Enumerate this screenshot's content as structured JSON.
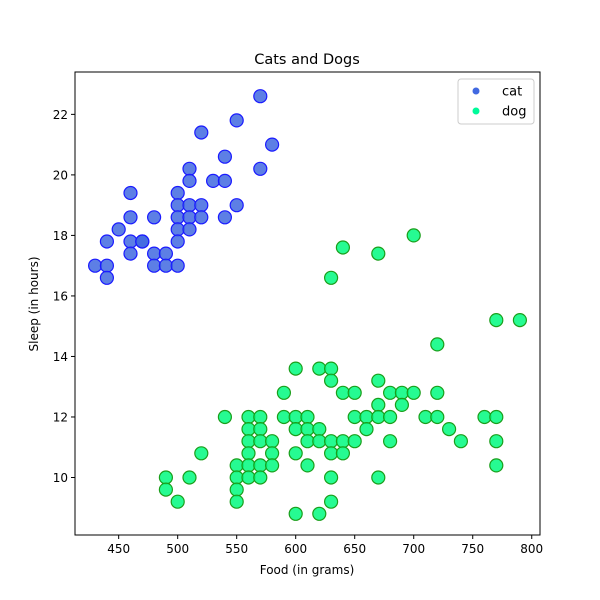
{
  "chart_data": {
    "type": "scatter",
    "title": "Cats and Dogs",
    "xlabel": "Food (in grams)",
    "ylabel": "Sleep (in hours)",
    "xlim": [
      413,
      807
    ],
    "ylim": [
      8.1,
      23.4
    ],
    "xticks": [
      450,
      500,
      550,
      600,
      650,
      700,
      750,
      800
    ],
    "yticks": [
      10,
      12,
      14,
      16,
      18,
      20,
      22
    ],
    "grid": false,
    "legend_position": "top-right",
    "series": [
      {
        "name": "cat",
        "color": "#4169E1",
        "marker_fill": "rgba(65,105,225,0.85)",
        "marker_edge": "#1a1aff",
        "points": [
          [
            430,
            17.0
          ],
          [
            440,
            17.0
          ],
          [
            440,
            16.6
          ],
          [
            440,
            17.8
          ],
          [
            450,
            18.2
          ],
          [
            460,
            19.4
          ],
          [
            460,
            18.6
          ],
          [
            460,
            17.8
          ],
          [
            460,
            17.4
          ],
          [
            470,
            17.8
          ],
          [
            470,
            17.8
          ],
          [
            480,
            18.6
          ],
          [
            480,
            17.4
          ],
          [
            480,
            17.0
          ],
          [
            490,
            17.4
          ],
          [
            490,
            17.0
          ],
          [
            500,
            19.4
          ],
          [
            500,
            19.0
          ],
          [
            500,
            18.6
          ],
          [
            500,
            18.2
          ],
          [
            500,
            17.8
          ],
          [
            500,
            17.0
          ],
          [
            510,
            20.2
          ],
          [
            510,
            19.8
          ],
          [
            510,
            19.0
          ],
          [
            510,
            18.6
          ],
          [
            510,
            18.2
          ],
          [
            520,
            21.4
          ],
          [
            520,
            19.0
          ],
          [
            520,
            18.6
          ],
          [
            530,
            19.8
          ],
          [
            540,
            20.6
          ],
          [
            540,
            19.8
          ],
          [
            540,
            18.6
          ],
          [
            550,
            21.8
          ],
          [
            550,
            19.0
          ],
          [
            570,
            22.6
          ],
          [
            570,
            20.2
          ],
          [
            580,
            21.0
          ]
        ]
      },
      {
        "name": "dog",
        "color": "#00FA9A",
        "marker_fill": "rgba(0,250,127,0.85)",
        "marker_edge": "#1a9e1a",
        "points": [
          [
            490,
            10.0
          ],
          [
            490,
            9.6
          ],
          [
            500,
            9.2
          ],
          [
            510,
            10.0
          ],
          [
            520,
            10.8
          ],
          [
            540,
            12.0
          ],
          [
            550,
            10.4
          ],
          [
            550,
            10.0
          ],
          [
            550,
            9.6
          ],
          [
            550,
            9.2
          ],
          [
            560,
            12.0
          ],
          [
            560,
            11.6
          ],
          [
            560,
            11.2
          ],
          [
            560,
            10.8
          ],
          [
            560,
            10.4
          ],
          [
            560,
            10.0
          ],
          [
            570,
            12.0
          ],
          [
            570,
            11.6
          ],
          [
            570,
            11.2
          ],
          [
            570,
            10.4
          ],
          [
            570,
            10.0
          ],
          [
            580,
            11.2
          ],
          [
            580,
            10.8
          ],
          [
            580,
            10.4
          ],
          [
            590,
            12.8
          ],
          [
            590,
            12.0
          ],
          [
            600,
            13.6
          ],
          [
            600,
            12.0
          ],
          [
            600,
            11.6
          ],
          [
            600,
            10.8
          ],
          [
            600,
            8.8
          ],
          [
            610,
            12.0
          ],
          [
            610,
            11.6
          ],
          [
            610,
            11.2
          ],
          [
            610,
            10.4
          ],
          [
            620,
            13.6
          ],
          [
            620,
            11.6
          ],
          [
            620,
            11.2
          ],
          [
            620,
            8.8
          ],
          [
            630,
            16.6
          ],
          [
            630,
            13.6
          ],
          [
            630,
            13.2
          ],
          [
            630,
            11.2
          ],
          [
            630,
            10.8
          ],
          [
            630,
            10.0
          ],
          [
            630,
            9.2
          ],
          [
            640,
            17.6
          ],
          [
            640,
            12.8
          ],
          [
            640,
            11.2
          ],
          [
            640,
            10.8
          ],
          [
            650,
            12.8
          ],
          [
            650,
            12.0
          ],
          [
            650,
            11.2
          ],
          [
            660,
            12.0
          ],
          [
            660,
            11.6
          ],
          [
            670,
            17.4
          ],
          [
            670,
            13.2
          ],
          [
            670,
            12.4
          ],
          [
            670,
            12.0
          ],
          [
            670,
            10.0
          ],
          [
            680,
            12.8
          ],
          [
            680,
            12.0
          ],
          [
            680,
            11.2
          ],
          [
            690,
            12.8
          ],
          [
            690,
            12.4
          ],
          [
            700,
            18.0
          ],
          [
            700,
            12.8
          ],
          [
            710,
            12.0
          ],
          [
            720,
            14.4
          ],
          [
            720,
            12.8
          ],
          [
            720,
            12.0
          ],
          [
            730,
            11.6
          ],
          [
            740,
            11.2
          ],
          [
            760,
            12.0
          ],
          [
            770,
            15.2
          ],
          [
            770,
            12.0
          ],
          [
            770,
            11.2
          ],
          [
            770,
            10.4
          ],
          [
            790,
            15.2
          ]
        ]
      }
    ]
  }
}
